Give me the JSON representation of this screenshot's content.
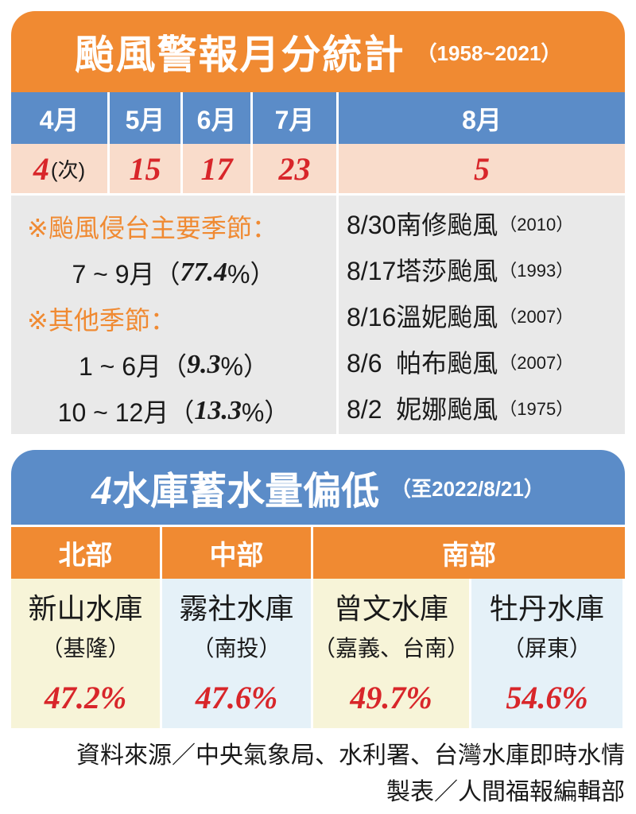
{
  "typhoon": {
    "title": "颱風警報月分統計",
    "subtitle": "（1958~2021）",
    "months": [
      "4月",
      "5月",
      "6月",
      "7月",
      "8月"
    ],
    "counts": [
      "4",
      "15",
      "17",
      "23",
      "5"
    ],
    "count_unit": "(次)",
    "season_main_head": "※颱風侵台主要季節：",
    "season_main_range": "7 ~ 9月（",
    "season_main_pct": "77.4",
    "season_other_head": "※其他季節：",
    "season_other_1_range": "1 ~ 6月（",
    "season_other_1_pct": "9.3",
    "season_other_2_range": "10 ~ 12月（",
    "season_other_2_pct": "13.3",
    "pct_suffix": "%）",
    "august_typhoons": [
      {
        "name": "8/30南修颱風",
        "year": "（2010）"
      },
      {
        "name": "8/17塔莎颱風",
        "year": "（1993）"
      },
      {
        "name": "8/16溫妮颱風",
        "year": "（2007）"
      },
      {
        "name": "8/6  帕布颱風",
        "year": "（2007）"
      },
      {
        "name": "8/2  妮娜颱風",
        "year": "（1975）"
      }
    ]
  },
  "reservoir": {
    "title_num": "4",
    "title_text": "水庫蓄水量偏低",
    "subtitle": "（至2022/8/21）",
    "regions": [
      "北部",
      "中部",
      "南部"
    ],
    "items": [
      {
        "name": "新山水庫",
        "location": "（基隆）",
        "percent": "47.2%"
      },
      {
        "name": "霧社水庫",
        "location": "（南投）",
        "percent": "47.6%"
      },
      {
        "name": "曾文水庫",
        "location": "（嘉義、台南）",
        "percent": "49.7%"
      },
      {
        "name": "牡丹水庫",
        "location": "（屏東）",
        "percent": "54.6%"
      }
    ]
  },
  "footer": {
    "source": "資料來源／中央氣象局、水利署、台灣水庫即時水情",
    "credit": "製表／人間福報編輯部"
  },
  "colors": {
    "orange": "#f08a32",
    "blue": "#5b8cc8",
    "red": "#d8262a",
    "peach": "#f9dccb",
    "gray": "#e9e9e9",
    "cream": "#f7f4d8",
    "light_blue": "#e5f1f8"
  }
}
